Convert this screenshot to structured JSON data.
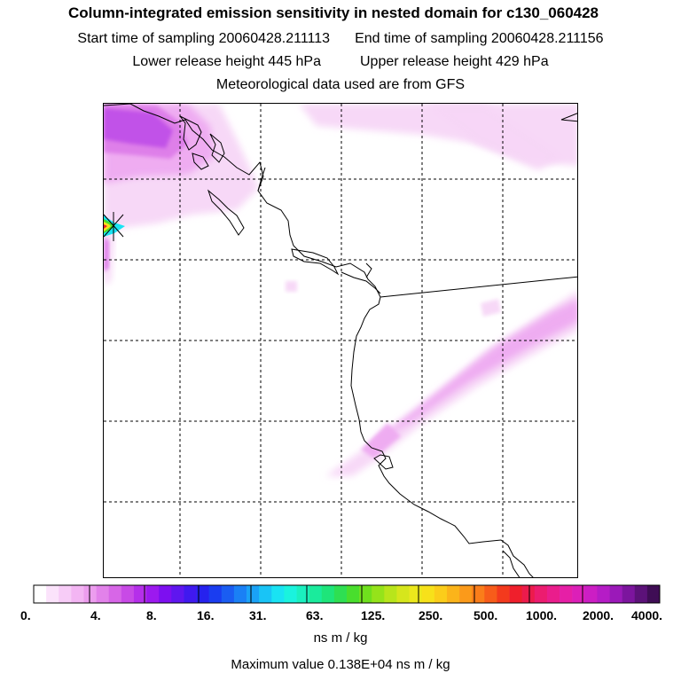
{
  "title": "Column-integrated emission sensitivity in nested domain for c130_060428",
  "start_time": "Start time of sampling 20060428.211113",
  "end_time": "End time of sampling 20060428.211156",
  "lower_release": "Lower release height  445 hPa",
  "upper_release": "Upper release height  429 hPa",
  "met_data": "Meteorological data used are from GFS",
  "colorbar": {
    "ticks": [
      "0.",
      "4.",
      "8.",
      "16.",
      "31.",
      "63.",
      "125.",
      "250.",
      "500.",
      "1000.",
      "2000.",
      "4000."
    ],
    "colors": [
      "#ffffff",
      "#fbe3fb",
      "#f7ccf7",
      "#f3b5f3",
      "#ec9dee",
      "#e282ea",
      "#d766e7",
      "#c84ae6",
      "#b52fea",
      "#9c19ef",
      "#7d0ff0",
      "#5f16ef",
      "#4019ef",
      "#2622ee",
      "#1a3df0",
      "#1a5df2",
      "#1a80f5",
      "#1aa2f7",
      "#19c4f6",
      "#19e3f3",
      "#1af3de",
      "#1af0bf",
      "#1aeb9c",
      "#1ee57a",
      "#2edf52",
      "#49de2d",
      "#6fe01d",
      "#95e31a",
      "#b8e51b",
      "#d6e61c",
      "#ece81c",
      "#f7e11a",
      "#fbcd1a",
      "#fbb41a",
      "#fb9a1a",
      "#fa7d1a",
      "#f75c1a",
      "#f33a1d",
      "#ef1f2c",
      "#ec1b4c",
      "#ec1c6f",
      "#ea1d8c",
      "#e61fa6",
      "#dc1fb8",
      "#cc1ec4",
      "#b51cc6",
      "#9b19b9",
      "#7c159e",
      "#5c1279",
      "#3f0d55"
    ]
  },
  "units": "ns m / kg",
  "max_value": "Maximum value  0.138E+04 ns m / kg",
  "map": {
    "plume_colors": [
      "#f7d6f7",
      "#eeaaf1",
      "#dd7ce9",
      "#c050e8",
      "#a324e8"
    ]
  }
}
